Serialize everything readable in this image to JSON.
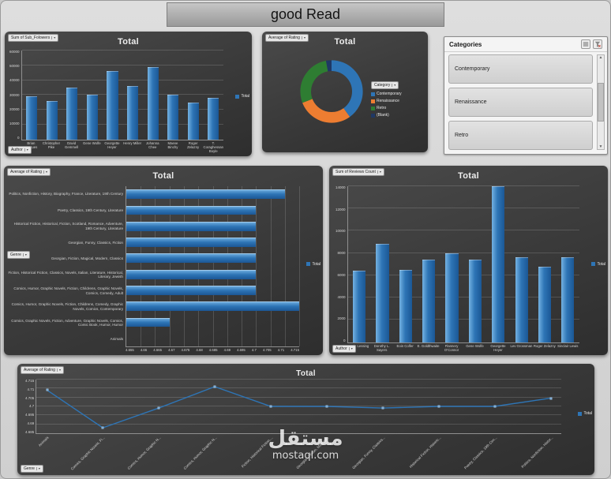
{
  "header": {
    "title": "good Read"
  },
  "icons": {
    "dropdown": "▾",
    "scroll_up": "▲",
    "scroll_down": "▼"
  },
  "watermark": {
    "arabic": "مستقل",
    "latin": "mostaql.com"
  },
  "panels": {
    "subscribers": {
      "field_button": "Sum of Sub_Folowers",
      "title": "Total",
      "legend": "Total",
      "axis_button": "Author"
    },
    "donut": {
      "field_button": "Average of Rating",
      "title": "Total",
      "legend_button": "Category"
    },
    "slicer": {
      "title": "Categories",
      "items": [
        "Contemporary",
        "Renaissance",
        "Retro"
      ]
    },
    "genre_rating": {
      "field_button": "Average of Rating",
      "title": "Total",
      "legend": "Total",
      "axis_button": "Genre"
    },
    "reviews": {
      "field_button": "Sum of Reviews Count",
      "title": "Total",
      "legend": "Total",
      "axis_button": "Author"
    },
    "rating_line": {
      "field_button": "Average of Rating",
      "title": "Total",
      "legend": "Total",
      "axis_button": "Genre"
    }
  },
  "chart_data": [
    {
      "id": "subscribers",
      "type": "bar",
      "title": "Total",
      "categories": [
        "Brian Jacques",
        "Christopher Pike",
        "David Gemmell",
        "Gene Wolfe",
        "Georgette Heyer",
        "Henry Miller",
        "Johanna Chee",
        "Maeve Binchy",
        "Roger Zelazny",
        "T. Coraghessan Boyle"
      ],
      "values": [
        29000,
        26000,
        35000,
        30000,
        46000,
        36000,
        49000,
        30000,
        25000,
        28000
      ],
      "ylim": [
        0,
        60000
      ],
      "yticks": [
        "0",
        "10000",
        "20000",
        "30000",
        "40000",
        "50000",
        "60000"
      ],
      "legend": "Total",
      "bar_color": "#2e75b6"
    },
    {
      "id": "rating_donut",
      "type": "donut",
      "title": "Total",
      "slices": [
        {
          "label": "Contemporary",
          "value": 40,
          "color": "#2e75b6"
        },
        {
          "label": "Renaissance",
          "value": 29,
          "color": "#ed7d31"
        },
        {
          "label": "Retro",
          "value": 28,
          "color": "#2e7d32"
        },
        {
          "label": "(Blank)",
          "value": 3,
          "color": "#1f3864"
        }
      ]
    },
    {
      "id": "genre_rating",
      "type": "hbar",
      "title": "Total",
      "categories": [
        "Politics, Nonfiction, History, Biography, France, Literature, 19th Century",
        "Poetry, Classics, 19th Century, Literature",
        "Historical Fiction, Historical, Fiction, Scotland, Romance, Adventure, 19th Century, Literature",
        "Georgian, Funny, Classics, Fiction",
        "Georgian, Fiction, Magical, Modern, Classics",
        "Fiction, Historical Fiction, Classics, Novels, Italian, Literature, Historical, Literary, Jewish",
        "Comics, Humor, Graphic Novels, Fiction, Childrens, Graphic Novels, Comics, Comedy, Adult",
        "Comics, Humor, Graphic Novels, Fiction, Childrens, Comedy, Graphic Novels, Comics, Contemporary",
        "Comics, Graphic Novels, Fiction, Adventure, Graphic Novels, Comics, Comic Book, Humor, Humor",
        "Animals"
      ],
      "values": [
        4.71,
        4.7,
        4.7,
        4.7,
        4.7,
        4.7,
        4.7,
        4.715,
        4.67,
        4.655
      ],
      "xlim": [
        4.655,
        4.715
      ],
      "xticks": [
        "4.655",
        "4.66",
        "4.665",
        "4.67",
        "4.675",
        "4.68",
        "4.685",
        "4.69",
        "4.695",
        "4.7",
        "4.705",
        "4.71",
        "4.715"
      ],
      "legend": "Total",
      "bar_color": "#2e75b6"
    },
    {
      "id": "reviews",
      "type": "bar",
      "title": "Total",
      "categories": [
        "Doris Lessing",
        "Dorothy L. Sayers",
        "Eoin Colfer",
        "E. Goldthwaite",
        "Flannery O'Connor",
        "Gene Wolfe",
        "Georgette Heyer",
        "Lev Grossman",
        "Roger Zelazny",
        "Sinclair Lewis"
      ],
      "values": [
        6400,
        8800,
        6500,
        7400,
        8000,
        7400,
        14000,
        7600,
        6800,
        7600
      ],
      "ylim": [
        0,
        14000
      ],
      "yticks": [
        "0",
        "2000",
        "4000",
        "6000",
        "8000",
        "10000",
        "12000",
        "14000"
      ],
      "legend": "Total",
      "bar_color": "#2e75b6"
    },
    {
      "id": "rating_line",
      "type": "line",
      "title": "Total",
      "categories": [
        "Animals",
        "Comics, Graphic Novels, Fi...",
        "Comics, Humor, Graphic N...",
        "Comics, Humor, Graphic N...",
        "Fiction, Historical Fiction,...",
        "Georgian, Fiction, Magical...",
        "Georgian, Funny, Classics...",
        "Historical Fiction, Historic...",
        "Poetry, Classics, 19th Cen...",
        "Politics, Nonfiction, Histor..."
      ],
      "values": [
        4.71,
        4.687,
        4.699,
        4.712,
        4.7,
        4.7,
        4.699,
        4.7,
        4.7,
        4.705
      ],
      "ylim": [
        4.685,
        4.715
      ],
      "yticks": [
        "4.685",
        "4.69",
        "4.695",
        "4.7",
        "4.705",
        "4.71",
        "4.715"
      ],
      "legend": "Total",
      "line_color": "#2e75b6"
    }
  ]
}
